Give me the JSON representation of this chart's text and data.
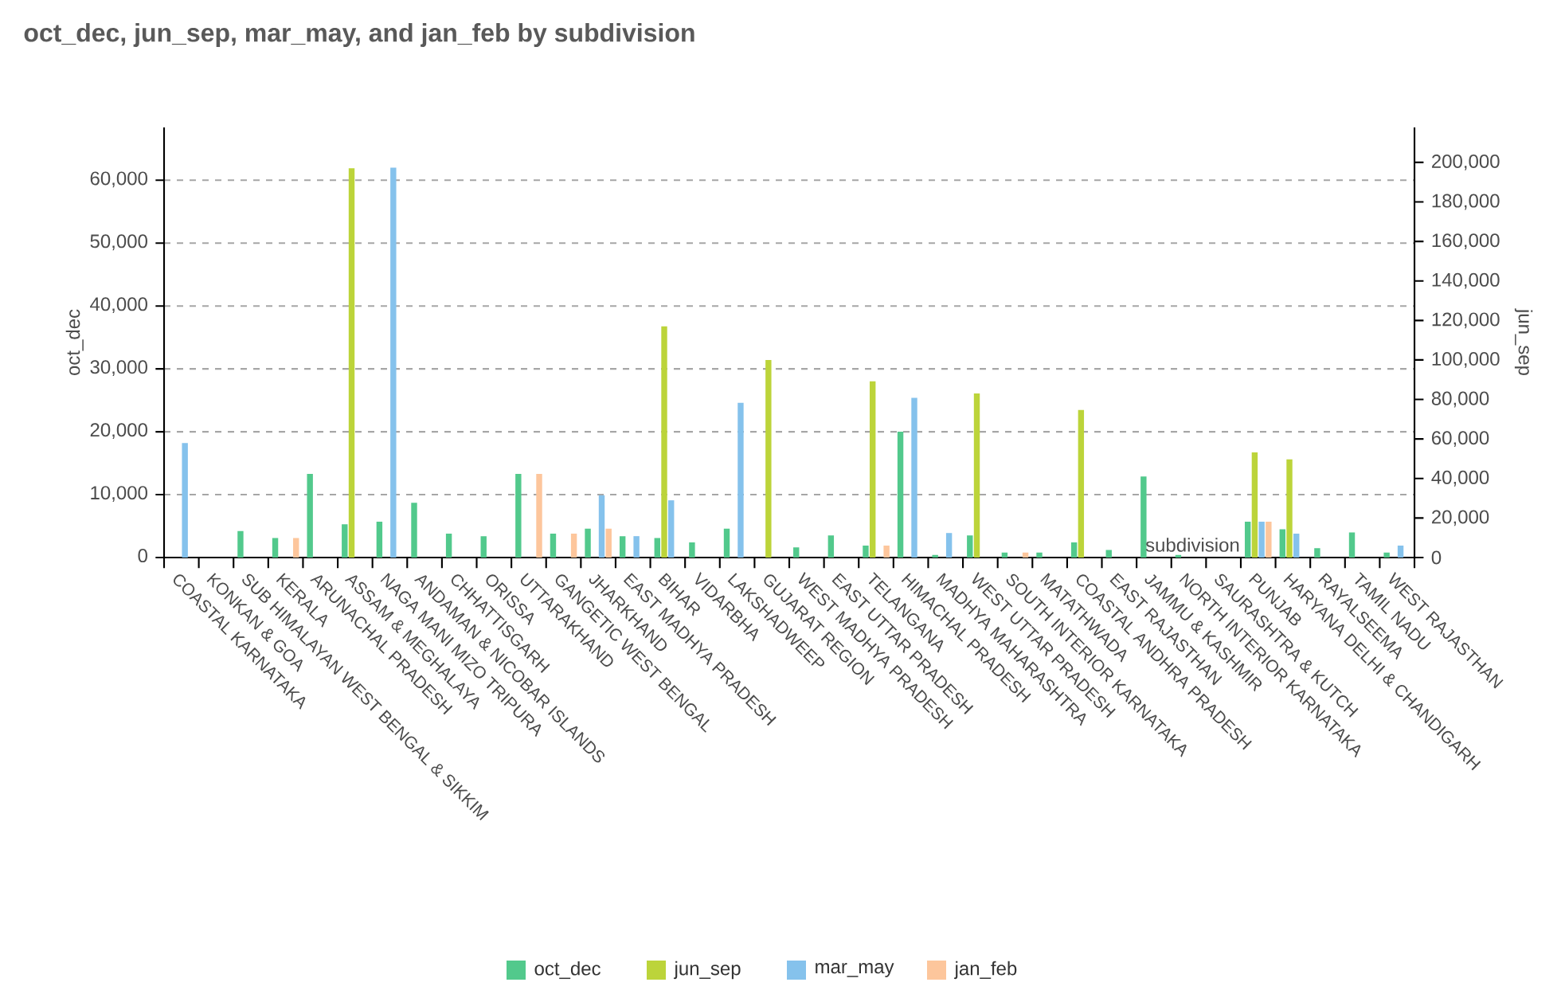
{
  "chart_data": {
    "type": "bar",
    "title": "oct_dec, jun_sep, mar_may, and jan_feb by subdivision",
    "xlabel": "subdivision",
    "ylabel": "oct_dec",
    "y2label": "jun_sep",
    "categories": [
      "COASTAL KARNATAKA",
      "KONKAN & GOA",
      "SUB HIMALAYAN WEST BENGAL & SIKKIM",
      "KERALA",
      "ARUNACHAL PRADESH",
      "ASSAM & MEGHALAYA",
      "NAGA MANI MIZO TRIPURA",
      "ANDAMAN & NICOBAR ISLANDS",
      "CHHATTISGARH",
      "ORISSA",
      "UTTARAKHAND",
      "GANGETIC WEST BENGAL",
      "JHARKHAND",
      "EAST MADHYA PRADESH",
      "BIHAR",
      "VIDARBHA",
      "LAKSHADWEEP",
      "GUJARAT REGION",
      "WEST MADHYA PRADESH",
      "EAST UTTAR PRADESH",
      "TELANGANA",
      "HIMACHAL PRADESH",
      "MADHYA MAHARASHTRA",
      "WEST UTTAR PRADESH",
      "SOUTH INTERIOR KARNATAKA",
      "MATATHWADA",
      "COASTAL ANDHRA PRADESH",
      "EAST RAJASTHAN",
      "JAMMU & KASHMIR",
      "NORTH INTERIOR KARNATAKA",
      "SAURASHTRA & KUTCH",
      "PUNJAB",
      "HARYANA DELHI & CHANDIGARH",
      "RAYALSEEMA",
      "TAMIL NADU",
      "WEST RAJASTHAN"
    ],
    "series": [
      {
        "name": "oct_dec",
        "color": "#52c98c",
        "values": [
          null,
          null,
          4200,
          3100,
          13300,
          5300,
          5700,
          8700,
          3800,
          3400,
          13300,
          3800,
          4600,
          3400,
          3100,
          2400,
          4600,
          null,
          1600,
          3500,
          1900,
          20000,
          400,
          3500,
          800,
          800,
          2400,
          1200,
          12900,
          400,
          null,
          5700,
          4500,
          1500,
          4000,
          800
        ]
      },
      {
        "name": "jun_sep",
        "color": "#bcd43a",
        "axis": "y2",
        "values": [
          null,
          null,
          null,
          null,
          null,
          197000,
          null,
          null,
          null,
          null,
          null,
          null,
          null,
          null,
          117000,
          null,
          null,
          100000,
          null,
          null,
          89200,
          null,
          null,
          83000,
          null,
          null,
          74700,
          null,
          null,
          null,
          null,
          53200,
          49700,
          null,
          null,
          null
        ]
      },
      {
        "name": "mar_may",
        "color": "#85c2ec",
        "values": [
          18200,
          null,
          null,
          null,
          null,
          null,
          62000,
          null,
          null,
          null,
          null,
          null,
          9900,
          3400,
          9100,
          null,
          24600,
          null,
          null,
          null,
          null,
          25400,
          3900,
          null,
          null,
          null,
          null,
          null,
          null,
          null,
          null,
          5700,
          3800,
          null,
          null,
          1900
        ]
      },
      {
        "name": "jan_feb",
        "color": "#fdc69c",
        "values": [
          null,
          null,
          null,
          3100,
          null,
          null,
          null,
          null,
          null,
          null,
          13300,
          3800,
          4600,
          null,
          null,
          null,
          null,
          null,
          null,
          null,
          1900,
          null,
          null,
          null,
          800,
          null,
          null,
          null,
          null,
          null,
          null,
          5700,
          null,
          null,
          null,
          null
        ]
      }
    ],
    "ylim": [
      0,
      68400
    ],
    "yticks": [
      0,
      {
        "value": 10000,
        "label": "10,000"
      },
      {
        "value": 20000,
        "label": "20,000"
      },
      {
        "value": 30000,
        "label": "30,000"
      },
      {
        "value": 40000,
        "label": "40,000"
      },
      {
        "value": 50000,
        "label": "50,000"
      },
      {
        "value": 60000,
        "label": "60,000"
      }
    ],
    "y2lim": [
      0,
      217700
    ],
    "y2ticks": [
      0,
      {
        "value": 20000,
        "label": "20,000"
      },
      {
        "value": 40000,
        "label": "40,000"
      },
      {
        "value": 60000,
        "label": "60,000"
      },
      {
        "value": 80000,
        "label": "80,000"
      },
      {
        "value": 100000,
        "label": "100,000"
      },
      {
        "value": 120000,
        "label": "120,000"
      },
      {
        "value": 140000,
        "label": "140,000"
      },
      {
        "value": 160000,
        "label": "160,000"
      },
      {
        "value": 180000,
        "label": "180,000"
      },
      {
        "value": 200000,
        "label": "200,000"
      }
    ],
    "grid": "y",
    "legend": "bottom"
  }
}
